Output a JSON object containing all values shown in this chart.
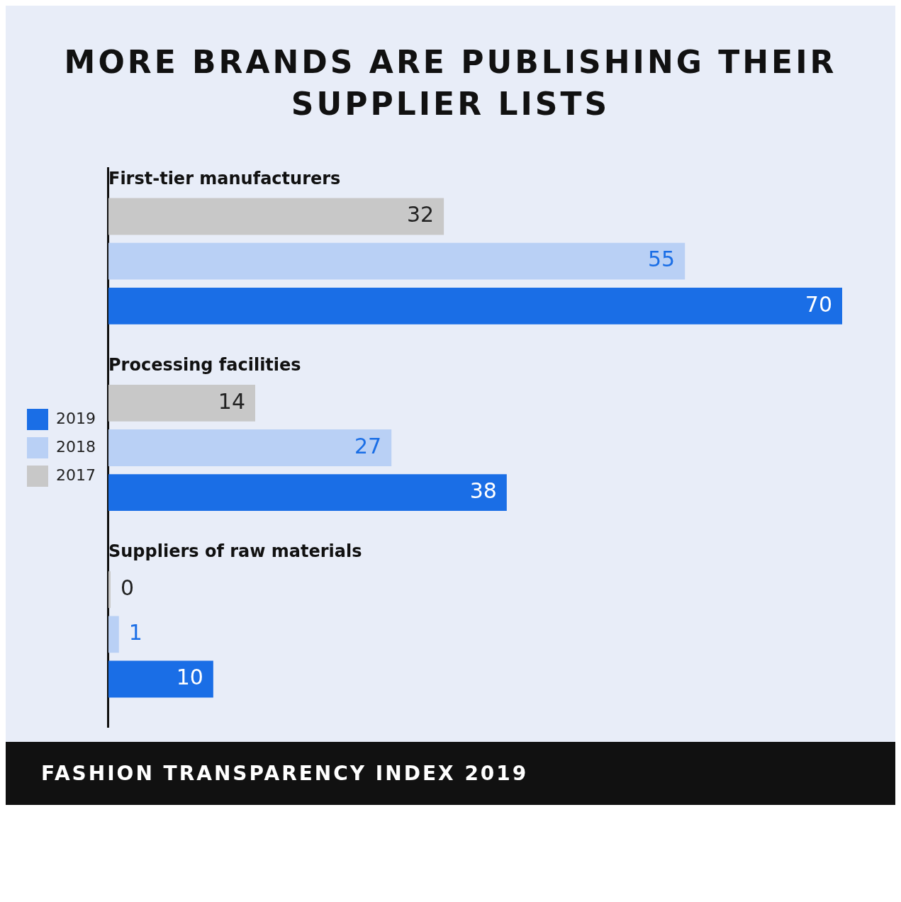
{
  "chart_data": {
    "type": "bar",
    "orientation": "horizontal",
    "title": "MORE BRANDS ARE PUBLISHING THEIR SUPPLIER LISTS",
    "categories": [
      "First-tier manufacturers",
      "Processing facilities",
      "Suppliers of raw materials"
    ],
    "series": [
      {
        "name": "2017",
        "color": "#c8c8c8",
        "values": [
          32,
          14,
          0
        ]
      },
      {
        "name": "2018",
        "color": "#b9d0f5",
        "values": [
          55,
          27,
          1
        ]
      },
      {
        "name": "2019",
        "color": "#1a6ee6",
        "values": [
          70,
          38,
          10
        ]
      }
    ],
    "data_labels": true,
    "legend": "left",
    "annotations": [
      "FASHION TRANSPARENCY INDEX 2019"
    ]
  }
}
